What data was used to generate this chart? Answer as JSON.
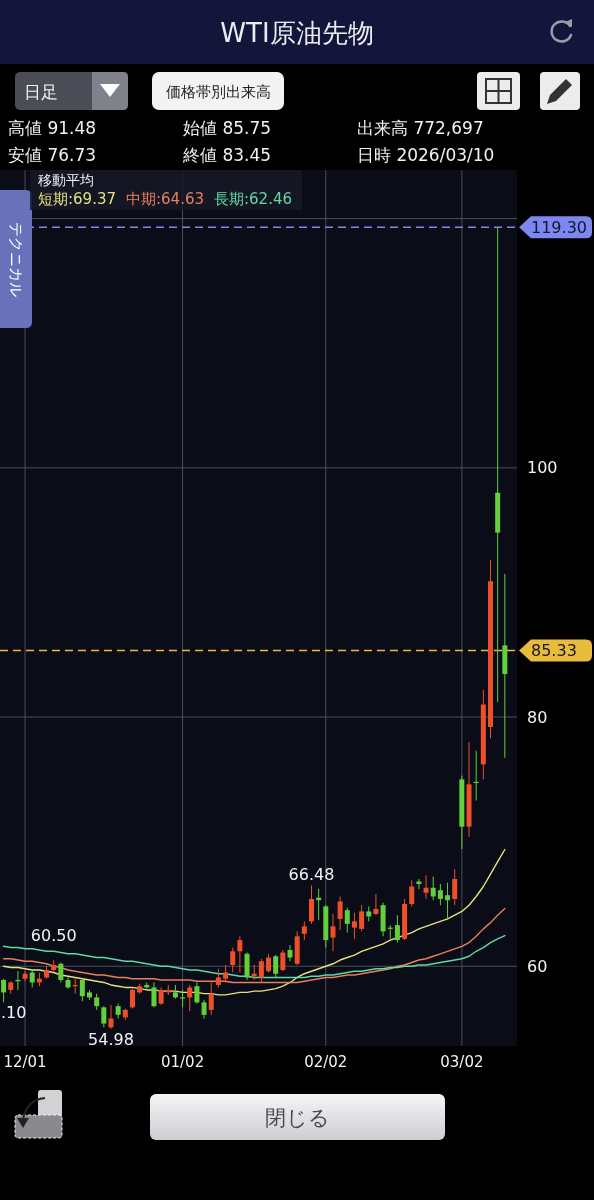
{
  "chart_data": {
    "type": "candlestick",
    "title": "WTI原油先物",
    "categories": [
      null,
      null,
      null,
      "12/01",
      null,
      null,
      null,
      null,
      null,
      null,
      null,
      null,
      null,
      null,
      null,
      null,
      null,
      null,
      null,
      null,
      null,
      null,
      null,
      null,
      null,
      "01/02",
      null,
      null,
      null,
      null,
      null,
      null,
      null,
      null,
      null,
      null,
      null,
      null,
      null,
      null,
      null,
      null,
      null,
      null,
      null,
      "02/02",
      null,
      null,
      null,
      null,
      null,
      null,
      null,
      null,
      null,
      null,
      null,
      null,
      null,
      null,
      null,
      null,
      null,
      null,
      "03/02",
      null,
      null,
      null,
      null,
      null,
      null
    ],
    "ohlc": [
      [
        58.9,
        59.0,
        57.1,
        57.9
      ],
      [
        58.1,
        58.8,
        57.8,
        58.7
      ],
      [
        58.9,
        59.6,
        58.1,
        58.8
      ],
      [
        59.0,
        59.6,
        58.8,
        59.4
      ],
      [
        59.5,
        59.7,
        58.3,
        58.7
      ],
      [
        58.7,
        59.5,
        58.4,
        59.0
      ],
      [
        59.1,
        60.0,
        59.0,
        59.7
      ],
      [
        59.7,
        60.5,
        59.6,
        60.1
      ],
      [
        60.2,
        60.3,
        58.7,
        58.9
      ],
      [
        58.9,
        59.1,
        58.2,
        58.3
      ],
      [
        58.4,
        59.1,
        57.8,
        58.5
      ],
      [
        58.9,
        59.0,
        57.2,
        57.6
      ],
      [
        57.9,
        58.1,
        57.3,
        57.5
      ],
      [
        57.5,
        57.8,
        56.5,
        56.8
      ],
      [
        56.7,
        56.8,
        55.1,
        55.4
      ],
      [
        55.1,
        56.9,
        54.98,
        55.8
      ],
      [
        56.8,
        57.0,
        55.8,
        56.1
      ],
      [
        55.9,
        56.6,
        55.7,
        56.5
      ],
      [
        56.7,
        58.2,
        56.6,
        58.1
      ],
      [
        57.9,
        58.6,
        57.8,
        58.4
      ],
      [
        58.5,
        58.7,
        58.2,
        58.3
      ],
      [
        58.3,
        58.7,
        56.7,
        56.8
      ],
      [
        57.0,
        58.3,
        56.9,
        58.1
      ],
      [
        57.9,
        58.5,
        57.7,
        58.1
      ],
      [
        57.9,
        58.5,
        57.4,
        57.5
      ],
      [
        57.5,
        58.1,
        56.7,
        57.4
      ],
      [
        57.5,
        58.5,
        56.4,
        58.3
      ],
      [
        58.4,
        58.7,
        57.0,
        57.1
      ],
      [
        57.1,
        57.3,
        55.8,
        56.1
      ],
      [
        56.5,
        58.7,
        56.1,
        57.8
      ],
      [
        58.5,
        59.8,
        58.3,
        59.1
      ],
      [
        59.0,
        60.1,
        58.7,
        59.5
      ],
      [
        60.1,
        61.5,
        59.5,
        61.2
      ],
      [
        61.2,
        62.4,
        59.5,
        62.1
      ],
      [
        61.0,
        61.1,
        58.9,
        59.1
      ],
      [
        59.2,
        60.1,
        58.9,
        59.4
      ],
      [
        59.1,
        60.6,
        58.7,
        60.4
      ],
      [
        59.6,
        61.0,
        59.5,
        60.7
      ],
      [
        60.8,
        60.9,
        59.1,
        59.4
      ],
      [
        59.7,
        61.3,
        59.6,
        61.1
      ],
      [
        61.3,
        61.7,
        60.4,
        60.7
      ],
      [
        60.2,
        62.8,
        60.1,
        62.4
      ],
      [
        62.6,
        63.6,
        62.1,
        63.2
      ],
      [
        63.6,
        66.48,
        63.4,
        65.4
      ],
      [
        65.5,
        66.2,
        63.7,
        65.3
      ],
      [
        64.8,
        64.9,
        61.5,
        62.1
      ],
      [
        62.3,
        64.2,
        61.2,
        63.2
      ],
      [
        63.8,
        65.6,
        62.9,
        65.2
      ],
      [
        64.5,
        64.7,
        62.7,
        63.4
      ],
      [
        63.1,
        64.3,
        62.2,
        63.6
      ],
      [
        63.0,
        64.9,
        62.8,
        64.4
      ],
      [
        64.4,
        64.8,
        63.6,
        64.0
      ],
      [
        64.2,
        65.8,
        64.1,
        64.6
      ],
      [
        64.9,
        65.1,
        62.4,
        62.8
      ],
      [
        63.1,
        63.3,
        62.2,
        63.0
      ],
      [
        63.3,
        64.1,
        61.9,
        62.1
      ],
      [
        62.2,
        65.4,
        62.1,
        65.0
      ],
      [
        65.0,
        66.9,
        64.8,
        66.4
      ],
      [
        66.8,
        67.0,
        66.2,
        66.6
      ],
      [
        65.9,
        67.3,
        65.4,
        66.3
      ],
      [
        66.3,
        67.2,
        65.3,
        65.6
      ],
      [
        66.1,
        66.6,
        64.9,
        65.4
      ],
      [
        65.7,
        66.7,
        63.7,
        65.3
      ],
      [
        65.4,
        67.8,
        64.9,
        67.0
      ],
      [
        75.0,
        75.3,
        69.4,
        71.2
      ],
      [
        71.2,
        78.0,
        70.4,
        74.6
      ],
      [
        74.8,
        77.3,
        73.3,
        74.7
      ],
      [
        76.2,
        82.2,
        75.0,
        81.0
      ],
      [
        79.2,
        92.6,
        78.3,
        90.9
      ],
      [
        98.0,
        119.3,
        81.2,
        94.8
      ],
      [
        85.75,
        91.48,
        76.73,
        83.45
      ]
    ],
    "colors": [
      "#62cf3c",
      "#ee4f2b",
      "#62cf3c",
      "#ee4f2b",
      "#62cf3c",
      "#ee4f2b",
      "#ee4f2b",
      "#ee4f2b",
      "#62cf3c",
      "#62cf3c",
      "#ee4f2b",
      "#62cf3c",
      "#62cf3c",
      "#62cf3c",
      "#62cf3c",
      "#ee4f2b",
      "#62cf3c",
      "#ee4f2b",
      "#ee4f2b",
      "#ee4f2b",
      "#62cf3c",
      "#62cf3c",
      "#ee4f2b",
      "#ee4f2b",
      "#62cf3c",
      "#62cf3c",
      "#ee4f2b",
      "#62cf3c",
      "#62cf3c",
      "#ee4f2b",
      "#ee4f2b",
      "#ee4f2b",
      "#ee4f2b",
      "#ee4f2b",
      "#62cf3c",
      "#ee4f2b",
      "#ee4f2b",
      "#ee4f2b",
      "#62cf3c",
      "#ee4f2b",
      "#62cf3c",
      "#ee4f2b",
      "#ee4f2b",
      "#ee4f2b",
      "#62cf3c",
      "#62cf3c",
      "#ee4f2b",
      "#ee4f2b",
      "#62cf3c",
      "#ee4f2b",
      "#ee4f2b",
      "#62cf3c",
      "#ee4f2b",
      "#62cf3c",
      "#62cf3c",
      "#62cf3c",
      "#ee4f2b",
      "#ee4f2b",
      "#62cf3c",
      "#ee4f2b",
      "#62cf3c",
      "#62cf3c",
      "#62cf3c",
      "#ee4f2b",
      "#62cf3c",
      "#ee4f2b",
      "#62cf3c",
      "#ee4f2b",
      "#ee4f2b",
      "#62cf3c",
      "#62cf3c"
    ],
    "series": [
      {
        "type": "line",
        "name": "短期:69.37",
        "color": "#e6e27c",
        "values": [
          60.0,
          59.9,
          59.9,
          59.8,
          59.7,
          59.7,
          59.6,
          59.5,
          59.3,
          59.2,
          59.1,
          59.0,
          58.9,
          58.8,
          58.7,
          58.5,
          58.4,
          58.3,
          58.3,
          58.2,
          58.1,
          58.1,
          58.0,
          58.0,
          58.0,
          57.9,
          57.9,
          57.9,
          57.8,
          57.8,
          57.7,
          57.7,
          57.8,
          57.9,
          57.9,
          58.0,
          58.0,
          58.1,
          58.2,
          58.4,
          58.7,
          59.1,
          59.4,
          59.6,
          59.8,
          60.0,
          60.2,
          60.5,
          60.7,
          60.9,
          61.2,
          61.4,
          61.6,
          61.8,
          62.1,
          62.3,
          62.5,
          62.7,
          63.0,
          63.2,
          63.4,
          63.6,
          63.8,
          64.1,
          64.4,
          64.9,
          65.6,
          66.4,
          67.4,
          68.4,
          69.37
        ]
      },
      {
        "type": "line",
        "name": "中期:64.63",
        "color": "#ea7f5e",
        "values": [
          60.6,
          60.6,
          60.5,
          60.4,
          60.4,
          60.3,
          60.2,
          60.0,
          59.9,
          59.7,
          59.6,
          59.5,
          59.4,
          59.3,
          59.3,
          59.2,
          59.1,
          59.1,
          59.0,
          59.0,
          59.0,
          59.0,
          58.9,
          58.9,
          58.9,
          58.9,
          58.9,
          58.8,
          58.8,
          58.8,
          58.8,
          58.8,
          58.7,
          58.7,
          58.7,
          58.7,
          58.7,
          58.7,
          58.7,
          58.7,
          58.7,
          58.7,
          58.8,
          58.9,
          59.0,
          59.1,
          59.1,
          59.2,
          59.3,
          59.3,
          59.4,
          59.5,
          59.6,
          59.7,
          59.8,
          60.0,
          60.1,
          60.3,
          60.5,
          60.6,
          60.8,
          61.0,
          61.2,
          61.4,
          61.6,
          61.9,
          62.4,
          63.0,
          63.5,
          64.1,
          64.63
        ]
      },
      {
        "type": "line",
        "name": "長期:62.46",
        "color": "#62d8a2",
        "values": [
          61.6,
          61.5,
          61.5,
          61.4,
          61.4,
          61.3,
          61.2,
          61.2,
          61.1,
          61.0,
          61.0,
          60.9,
          60.8,
          60.7,
          60.7,
          60.6,
          60.5,
          60.4,
          60.4,
          60.3,
          60.2,
          60.1,
          60.0,
          60.0,
          59.9,
          59.8,
          59.7,
          59.7,
          59.6,
          59.5,
          59.4,
          59.4,
          59.3,
          59.2,
          59.2,
          59.1,
          59.1,
          59.1,
          59.1,
          59.1,
          59.1,
          59.1,
          59.1,
          59.2,
          59.2,
          59.3,
          59.3,
          59.4,
          59.5,
          59.6,
          59.6,
          59.7,
          59.8,
          59.8,
          59.9,
          59.9,
          60.0,
          60.0,
          60.1,
          60.1,
          60.2,
          60.3,
          60.4,
          60.5,
          60.6,
          60.8,
          61.2,
          61.5,
          61.9,
          62.2,
          62.46
        ]
      }
    ],
    "legend": "top left",
    "legend_title": "移動平均",
    "ylim": [
      53.6,
      123.9
    ],
    "yticks": [
      60,
      80,
      100,
      {
        "value": 120,
        "label": null
      }
    ],
    "grid": true,
    "ref_lines": [
      {
        "axis": "y",
        "value": 119.3,
        "color": "#7d87f0",
        "line_style": "dashed"
      },
      {
        "axis": "y",
        "value": 85.33,
        "color": "#e9bb3d",
        "line_style": "dashed"
      }
    ],
    "annotations": [
      "日足",
      "価格帯別出来高",
      "高値 91.48",
      "始値 85.75",
      "出来高 772,697",
      "安値 76.73",
      "終値 83.45",
      "日時 2026/03/10",
      "テクニカル",
      "閉じる",
      {
        "text": "60.50",
        "y": 60.5
      },
      {
        "text": "66.48",
        "y": 66.48
      },
      {
        "text": "54.98",
        "y": 54.98
      },
      ".10",
      "119.30",
      "85.33"
    ]
  }
}
